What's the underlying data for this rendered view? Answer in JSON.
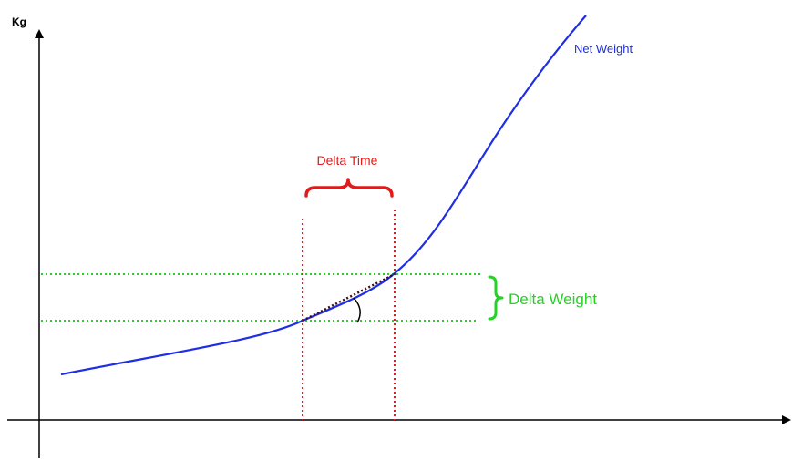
{
  "diagram": {
    "y_axis_label": "Kg",
    "curve_label": "Net Weight",
    "delta_time_label": "Delta Time",
    "delta_weight_label": "Delta Weight"
  },
  "colors": {
    "curve": "#1f2ee6",
    "delta_time": "#e01b1b",
    "delta_weight": "#26d126",
    "axes": "#000000",
    "slope": "#3a1010"
  }
}
